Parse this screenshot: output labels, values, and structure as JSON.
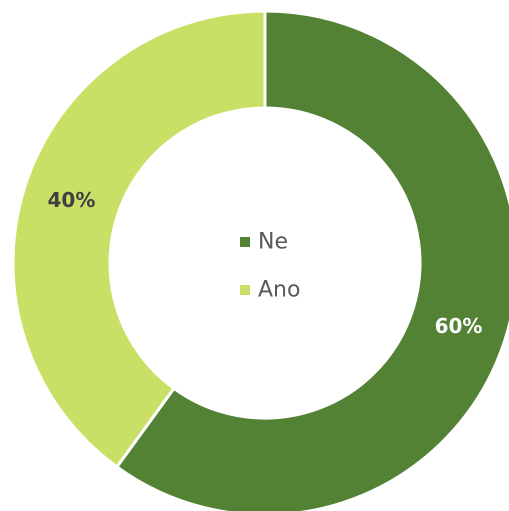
{
  "chart_data": {
    "type": "pie",
    "donut": true,
    "categories": [
      "Ne",
      "Ano"
    ],
    "values": [
      60,
      40
    ],
    "labels": [
      "60%",
      "40%"
    ],
    "colors": [
      "#548235",
      "#C9E066"
    ],
    "label_colors": [
      "#ffffff",
      "#404040"
    ],
    "title": "",
    "legend_position": "center"
  }
}
